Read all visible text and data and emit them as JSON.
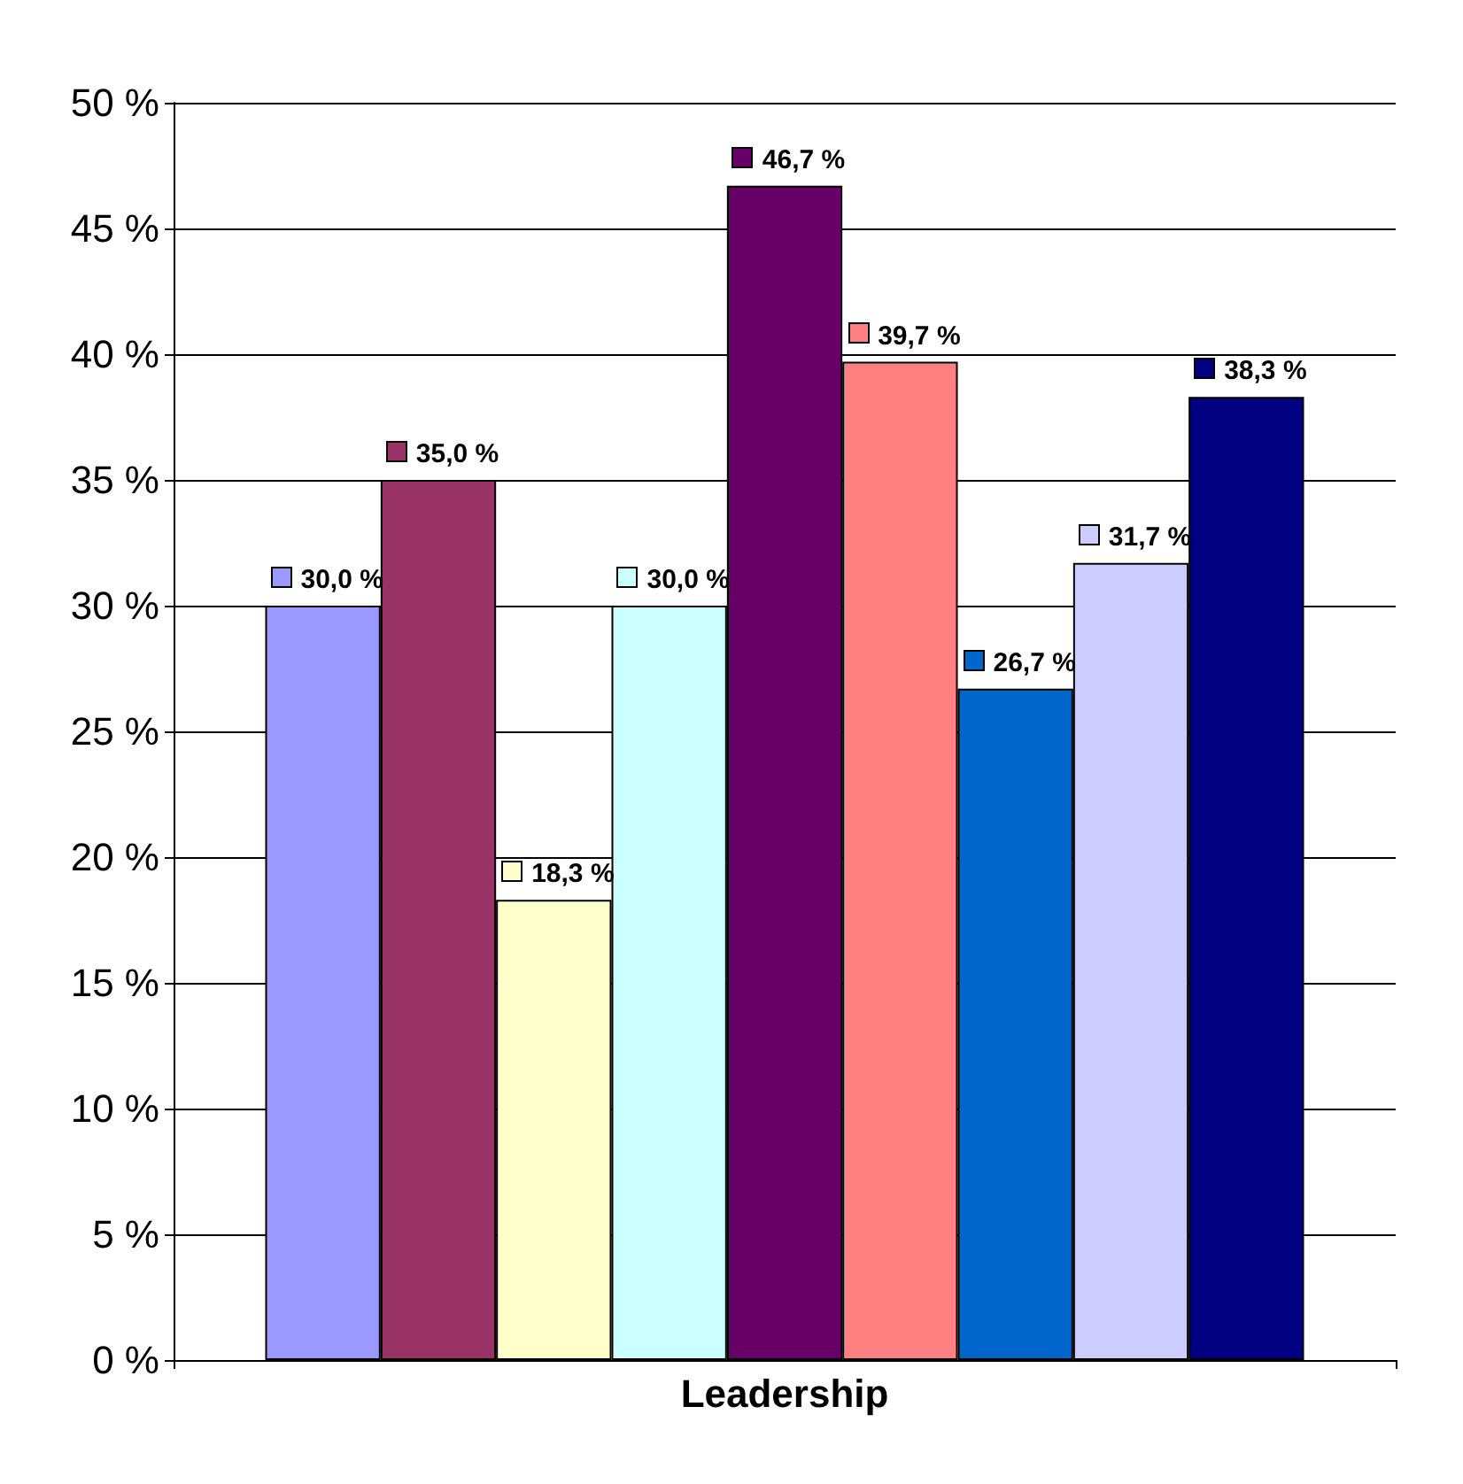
{
  "chart_data": {
    "type": "bar",
    "xlabel": null,
    "categories": [
      "Leadership"
    ],
    "series": [
      {
        "color": "#9999ff",
        "values": [
          30.0
        ],
        "value_labels": [
          "30,0 %"
        ]
      },
      {
        "color": "#993366",
        "values": [
          35.0
        ],
        "value_labels": [
          "35,0 %"
        ]
      },
      {
        "color": "#ffffcc",
        "values": [
          18.3
        ],
        "value_labels": [
          "18,3 %"
        ]
      },
      {
        "color": "#ccffff",
        "values": [
          30.0
        ],
        "value_labels": [
          "30,0 %"
        ]
      },
      {
        "color": "#660066",
        "values": [
          46.7
        ],
        "value_labels": [
          "46,7 %"
        ]
      },
      {
        "color": "#ff8080",
        "values": [
          39.7
        ],
        "value_labels": [
          "39,7 %"
        ]
      },
      {
        "color": "#0066cc",
        "values": [
          26.7
        ],
        "value_labels": [
          "26,7 %"
        ]
      },
      {
        "color": "#ccccff",
        "values": [
          31.7
        ],
        "value_labels": [
          "31,7 %"
        ]
      },
      {
        "color": "#000080",
        "values": [
          38.3
        ],
        "value_labels": [
          "38,3 %"
        ]
      }
    ],
    "ylim": [
      0,
      50
    ],
    "yticks": [
      {
        "value": 0,
        "label": "0 %"
      },
      {
        "value": 5,
        "label": "5 %"
      },
      {
        "value": 10,
        "label": "10 %"
      },
      {
        "value": 15,
        "label": "15 %"
      },
      {
        "value": 20,
        "label": "20 %"
      },
      {
        "value": 25,
        "label": "25 %"
      },
      {
        "value": 30,
        "label": "30 %"
      },
      {
        "value": 35,
        "label": "35 %"
      },
      {
        "value": 40,
        "label": "40 %"
      },
      {
        "value": 45,
        "label": "45 %"
      },
      {
        "value": 50,
        "label": "50 %"
      }
    ],
    "grid": "y"
  }
}
